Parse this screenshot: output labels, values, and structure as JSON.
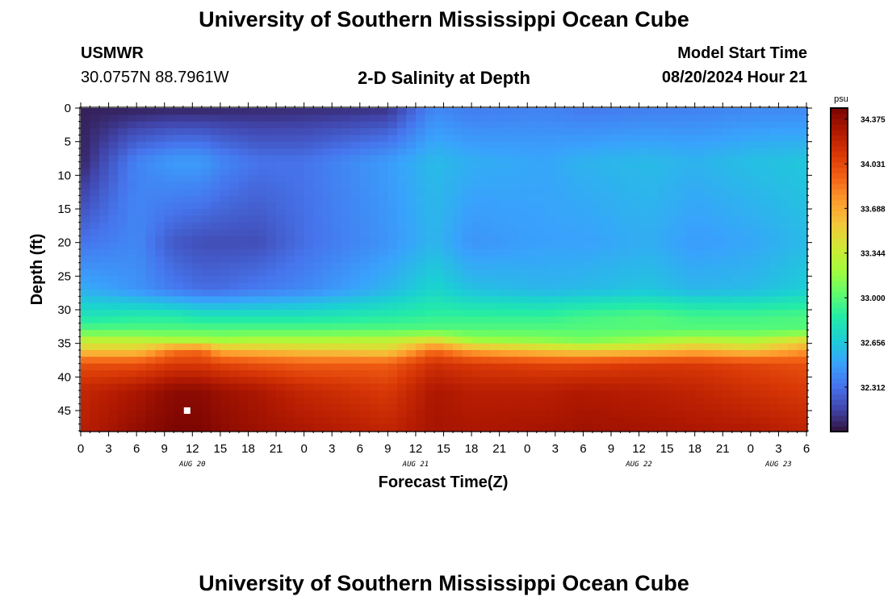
{
  "page": {
    "title_top": "University of Southern Mississippi Ocean Cube",
    "title_bottom": "University of Southern Mississippi Ocean Cube",
    "station_id": "USMWR",
    "coordinates": "30.0757N  88.7961W",
    "subtitle": "2-D Salinity at Depth",
    "model_start_label": "Model Start Time",
    "model_start_value": "08/20/2024 Hour 21"
  },
  "colors": {
    "colormap": [
      "#30123b",
      "#4145ab",
      "#4675ed",
      "#39a2fc",
      "#1bcfd4",
      "#24eca6",
      "#61fc6c",
      "#a4fc3b",
      "#d1e834",
      "#f3c63a",
      "#fe9b2d",
      "#f36315",
      "#d93806",
      "#b11901",
      "#7a0402"
    ]
  },
  "chart_data": {
    "type": "heatmap",
    "xlabel": "Forecast Time(Z)",
    "ylabel": "Depth (ft)",
    "x_tick_labels": [
      "0",
      "3",
      "6",
      "9",
      "12",
      "15",
      "18",
      "21",
      "0",
      "3",
      "6",
      "9",
      "12",
      "15",
      "18",
      "21",
      "0",
      "3",
      "6",
      "9",
      "12",
      "15",
      "18",
      "21",
      "0",
      "3",
      "6"
    ],
    "x_date_labels": [
      {
        "label": "AUG 20",
        "hour_index": 12
      },
      {
        "label": "AUG 21",
        "hour_index": 36
      },
      {
        "label": "AUG 22",
        "hour_index": 60
      },
      {
        "label": "AUG 23",
        "hour_index": 75
      }
    ],
    "x_range_hours": [
      0,
      78
    ],
    "y_ticks": [
      0,
      5,
      10,
      15,
      20,
      25,
      30,
      35,
      40,
      45
    ],
    "y_range": [
      0,
      48
    ],
    "colorbar": {
      "unit": "psu",
      "ticks": [
        34.375,
        34.031,
        33.688,
        33.344,
        33.0,
        32.656,
        32.312
      ],
      "tick_labels": [
        "34.375",
        "34.031",
        "33.688",
        "33.344",
        "33.000",
        "32.656",
        "32.312"
      ],
      "range": [
        31.97,
        34.46
      ]
    },
    "marker": {
      "hour_index": 11,
      "depth": 45
    },
    "grid_hours": [
      0,
      6,
      10,
      13,
      15,
      19,
      24,
      33,
      38,
      42,
      50,
      54,
      61,
      66,
      72,
      78
    ],
    "grid_depths": [
      0,
      8,
      20,
      27,
      31,
      33,
      34.5,
      36,
      38,
      42,
      48
    ],
    "values": [
      [
        32.02,
        32.02,
        32.03,
        32.03,
        32.04,
        32.05,
        32.06,
        32.08,
        32.4,
        32.35,
        32.38,
        32.34,
        32.36,
        32.37,
        32.4,
        32.4
      ],
      [
        32.03,
        32.38,
        32.48,
        32.48,
        32.4,
        32.32,
        32.32,
        32.48,
        32.6,
        32.55,
        32.52,
        32.57,
        32.6,
        32.57,
        32.62,
        32.65
      ],
      [
        32.32,
        32.4,
        32.22,
        32.18,
        32.18,
        32.18,
        32.3,
        32.45,
        32.58,
        32.45,
        32.5,
        32.5,
        32.55,
        32.48,
        32.52,
        32.6
      ],
      [
        32.55,
        32.45,
        32.35,
        32.3,
        32.3,
        32.35,
        32.4,
        32.58,
        32.72,
        32.62,
        32.58,
        32.6,
        32.64,
        32.58,
        32.6,
        32.68
      ],
      [
        32.8,
        32.85,
        32.85,
        32.8,
        32.8,
        32.8,
        32.8,
        32.85,
        32.9,
        32.9,
        32.9,
        32.95,
        33.0,
        32.95,
        32.95,
        32.98
      ],
      [
        33.0,
        33.0,
        33.0,
        33.0,
        33.0,
        33.0,
        33.0,
        33.0,
        33.0,
        33.0,
        33.0,
        33.0,
        33.0,
        33.0,
        33.0,
        33.0
      ],
      [
        33.3,
        33.3,
        33.25,
        33.25,
        33.2,
        33.25,
        33.25,
        33.3,
        33.45,
        33.2,
        33.15,
        33.1,
        33.2,
        33.3,
        33.25,
        33.45
      ],
      [
        33.55,
        33.55,
        33.85,
        33.9,
        33.65,
        33.6,
        33.55,
        33.5,
        33.9,
        33.7,
        33.55,
        33.5,
        33.55,
        33.65,
        33.55,
        33.75
      ],
      [
        34.0,
        34.0,
        34.1,
        34.1,
        34.05,
        34.0,
        33.95,
        33.95,
        34.15,
        34.1,
        34.05,
        34.05,
        34.1,
        34.1,
        34.05,
        34.0
      ],
      [
        34.2,
        34.3,
        34.4,
        34.4,
        34.35,
        34.3,
        34.2,
        34.1,
        34.3,
        34.25,
        34.25,
        34.28,
        34.25,
        34.22,
        34.15,
        34.1
      ],
      [
        34.25,
        34.38,
        34.45,
        34.45,
        34.4,
        34.35,
        34.3,
        34.22,
        34.32,
        34.3,
        34.32,
        34.34,
        34.32,
        34.3,
        34.28,
        34.22
      ]
    ]
  }
}
